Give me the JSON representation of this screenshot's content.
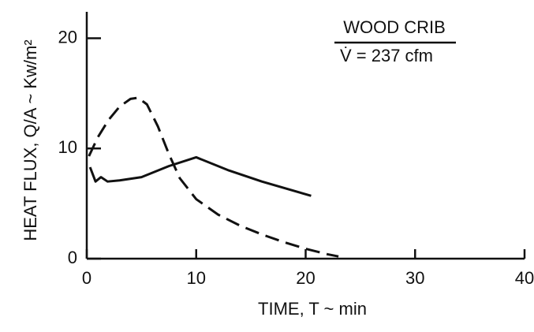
{
  "chart_data": {
    "type": "line",
    "xlabel": "TIME, T ~ min",
    "ylabel": "HEAT FLUX, Q/A ~ Kw/m²",
    "annotations": [
      "WOOD CRIB",
      "V̇ = 237 cfm"
    ],
    "xlim": [
      0,
      40
    ],
    "xticks": [
      0,
      10,
      20,
      30,
      40
    ],
    "ylim": [
      0,
      22.4
    ],
    "yticks": [
      0,
      10,
      20
    ],
    "series": [
      {
        "style": "solid",
        "color": "#111111",
        "x": [
          0.3,
          0.8,
          1.3,
          1.9,
          3,
          5,
          7.5,
          10,
          13,
          16,
          20.5
        ],
        "values": [
          8.3,
          7.0,
          7.4,
          7.0,
          7.1,
          7.4,
          8.4,
          9.2,
          8.0,
          7.0,
          5.7
        ]
      },
      {
        "style": "dashed",
        "color": "#111111",
        "x": [
          0.2,
          1,
          2,
          3,
          4,
          4.7,
          5.5,
          6.5,
          7.5,
          8.5,
          10,
          12,
          14,
          16,
          18,
          20,
          22,
          23
        ],
        "values": [
          9.3,
          11.0,
          12.6,
          13.8,
          14.5,
          14.6,
          14.0,
          12.0,
          9.5,
          7.3,
          5.4,
          4.0,
          3.0,
          2.2,
          1.5,
          0.9,
          0.4,
          0.2
        ]
      }
    ]
  }
}
